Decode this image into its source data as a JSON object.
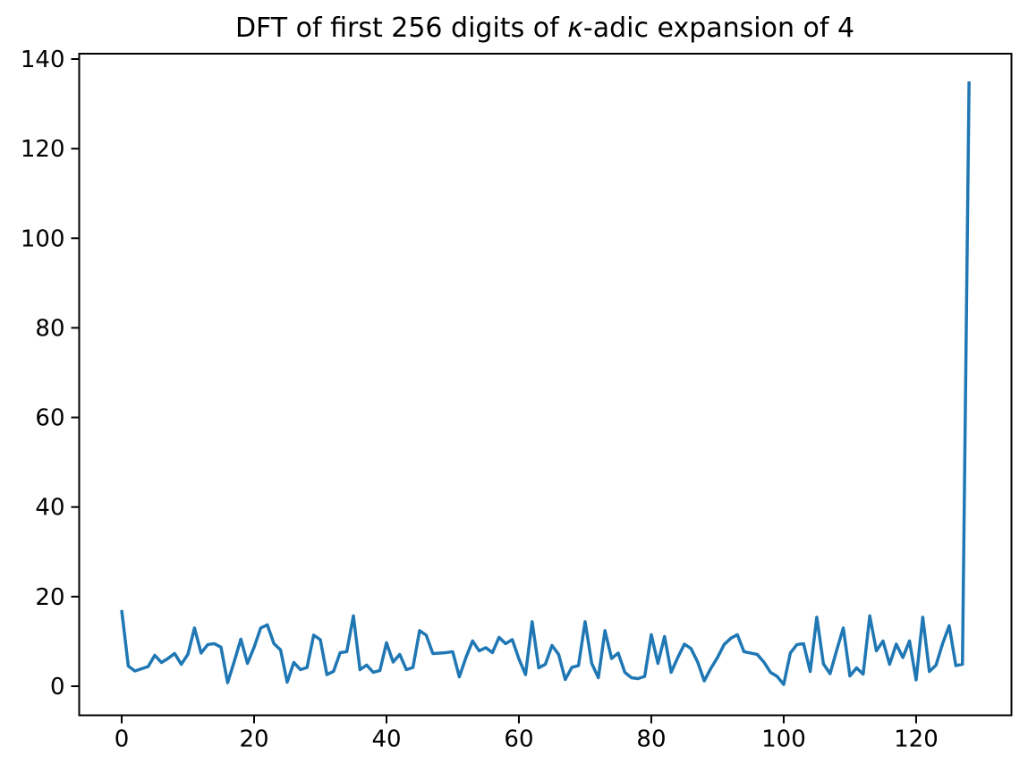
{
  "chart_data": {
    "type": "line",
    "title": "DFT of first 256 digits of κ-adic expansion of 4",
    "title_parts": {
      "prefix": "DFT of first 256 digits of ",
      "kappa": "κ",
      "suffix": "-adic expansion of 4"
    },
    "xlabel": "",
    "ylabel": "",
    "x_start": 0,
    "x_step": 1,
    "values": [
      17.0,
      4.5,
      3.4,
      3.9,
      4.4,
      6.9,
      5.3,
      6.2,
      7.3,
      4.9,
      7.1,
      13.0,
      7.4,
      9.3,
      9.5,
      8.7,
      0.8,
      5.5,
      10.5,
      5.1,
      8.7,
      13.0,
      13.7,
      9.5,
      8.1,
      0.9,
      5.3,
      3.7,
      4.2,
      11.4,
      10.4,
      2.6,
      3.3,
      7.5,
      7.7,
      15.7,
      3.7,
      4.7,
      3.1,
      3.5,
      9.7,
      5.4,
      7.1,
      3.7,
      4.2,
      12.4,
      11.4,
      7.3,
      7.4,
      7.5,
      7.7,
      2.1,
      6.4,
      10.1,
      7.9,
      8.6,
      7.5,
      10.9,
      9.5,
      10.4,
      6.1,
      2.6,
      14.4,
      4.1,
      4.9,
      9.1,
      7.1,
      1.5,
      4.2,
      4.6,
      14.4,
      5.1,
      1.9,
      12.4,
      6.2,
      7.4,
      3.1,
      1.9,
      1.7,
      2.2,
      11.5,
      5.1,
      11.1,
      3.1,
      6.4,
      9.4,
      8.4,
      5.4,
      1.2,
      4.0,
      6.4,
      9.3,
      10.7,
      11.5,
      7.7,
      7.4,
      7.1,
      5.4,
      3.1,
      2.2,
      0.4,
      7.4,
      9.3,
      9.5,
      3.3,
      15.4,
      5.0,
      2.8,
      8.0,
      13.0,
      2.3,
      4.1,
      2.7,
      15.7,
      7.9,
      10.1,
      4.9,
      9.4,
      6.4,
      10.1,
      1.4,
      15.4,
      3.3,
      4.7,
      9.5,
      13.5,
      4.6,
      4.9,
      135.0
    ],
    "xticks": [
      0,
      20,
      40,
      60,
      80,
      100,
      120
    ],
    "yticks": [
      0,
      20,
      40,
      60,
      80,
      100,
      120,
      140
    ],
    "xlim": [
      -6.42,
      134.4
    ],
    "ylim": [
      -6.49,
      141.2
    ],
    "grid": false,
    "legend": null,
    "line_color": "#1f77b4",
    "axes_color": "#000000",
    "background_color": "#ffffff"
  }
}
